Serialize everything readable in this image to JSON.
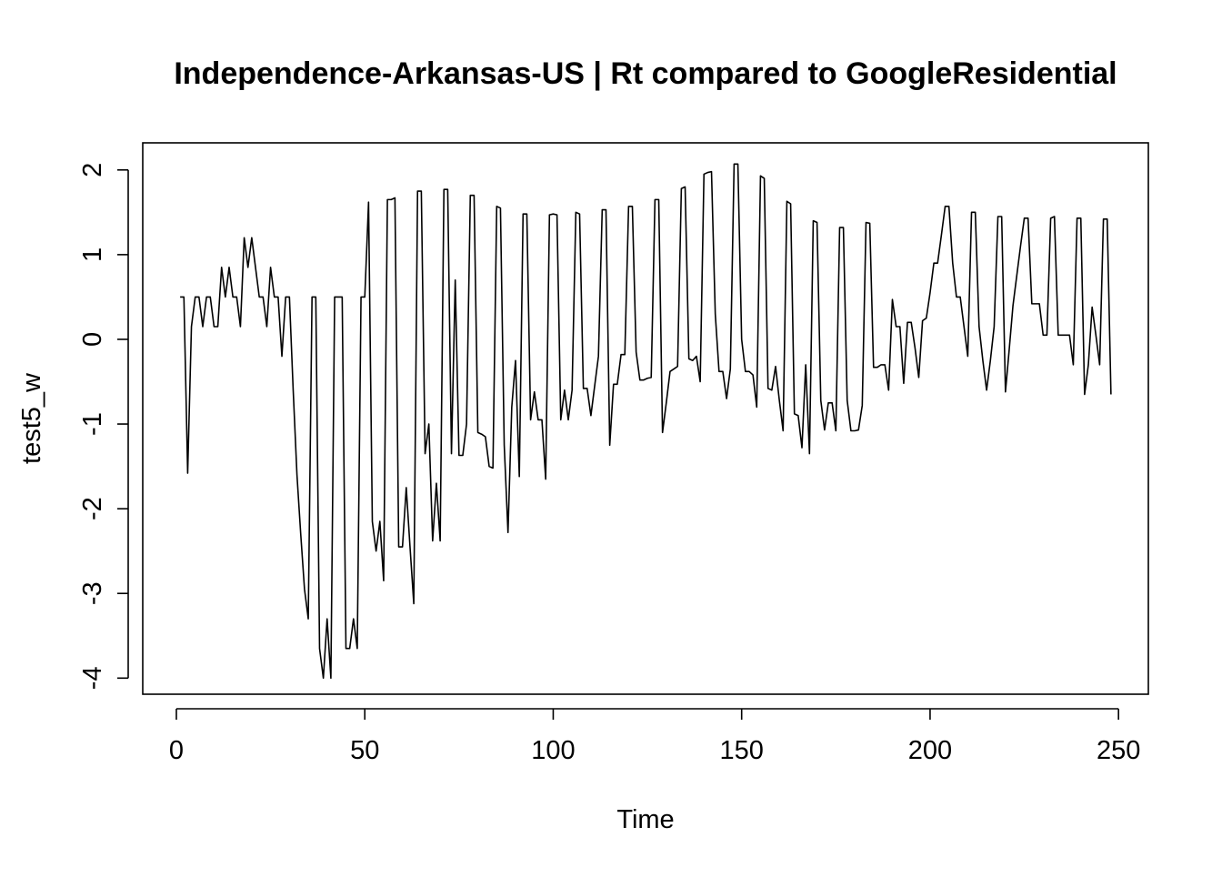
{
  "chart_data": {
    "type": "line",
    "title": "Independence-Arkansas-US | Rt compared to GoogleResidential",
    "xlabel": "Time",
    "ylabel": "test5_w",
    "xlim": [
      -8.92,
      257.92
    ],
    "ylim": [
      -4.19,
      2.32
    ],
    "xticks": [
      0,
      50,
      100,
      150,
      200,
      250
    ],
    "yticks": [
      -4,
      -3,
      -2,
      -1,
      0,
      1,
      2
    ],
    "grid": false,
    "legend": "none",
    "color": "#000000",
    "series": [
      {
        "x": [
          1,
          2,
          3,
          4,
          5,
          6,
          7,
          8,
          9,
          10,
          11,
          12,
          13,
          14,
          15,
          16,
          17,
          18,
          19,
          20,
          21,
          22,
          23,
          24,
          25,
          26,
          27,
          28,
          29,
          30,
          31,
          32,
          33,
          34,
          35,
          36,
          37,
          38,
          39,
          40,
          41,
          42,
          43,
          44,
          45,
          46,
          47,
          48,
          49,
          50,
          51,
          52,
          53,
          54,
          55,
          56,
          57,
          58,
          59,
          60,
          61,
          62,
          63,
          64,
          65,
          66,
          67,
          68,
          69,
          70,
          71,
          72,
          73,
          74,
          75,
          76,
          77,
          78,
          79,
          80,
          81,
          82,
          83,
          84,
          85,
          86,
          87,
          88,
          89,
          90,
          91,
          92,
          93,
          94,
          95,
          96,
          97,
          98,
          99,
          100,
          101,
          102,
          103,
          104,
          105,
          106,
          107,
          108,
          109,
          110,
          111,
          112,
          113,
          114,
          115,
          116,
          117,
          118,
          119,
          120,
          121,
          122,
          123,
          124,
          125,
          126,
          127,
          128,
          129,
          130,
          131,
          132,
          133,
          134,
          135,
          136,
          137,
          138,
          139,
          140,
          141,
          142,
          143,
          144,
          145,
          146,
          147,
          148,
          149,
          150,
          151,
          152,
          153,
          154,
          155,
          156,
          157,
          158,
          159,
          160,
          161,
          162,
          163,
          164,
          165,
          166,
          167,
          168,
          169,
          170,
          171,
          172,
          173,
          174,
          175,
          176,
          177,
          178,
          179,
          180,
          181,
          182,
          183,
          184,
          185,
          186,
          187,
          188,
          189,
          190,
          191,
          192,
          193,
          194,
          195,
          196,
          197,
          198,
          199,
          200,
          201,
          202,
          203,
          204,
          205,
          206,
          207,
          208,
          209,
          210,
          211,
          212,
          213,
          214,
          215,
          216,
          217,
          218,
          219,
          220,
          221,
          222,
          223,
          224,
          225,
          226,
          227,
          228,
          229,
          230,
          231,
          232,
          233,
          234,
          235,
          236,
          237,
          238,
          239,
          240,
          241,
          242,
          243,
          244,
          245,
          246,
          247,
          248
        ],
        "y": [
          0.5,
          0.5,
          -1.58,
          0.15,
          0.5,
          0.5,
          0.15,
          0.5,
          0.5,
          0.15,
          0.15,
          0.85,
          0.5,
          0.85,
          0.5,
          0.5,
          0.15,
          1.2,
          0.85,
          1.2,
          0.85,
          0.5,
          0.5,
          0.15,
          0.85,
          0.5,
          0.5,
          -0.2,
          0.5,
          0.5,
          -0.6,
          -1.6,
          -2.3,
          -2.95,
          -3.3,
          0.5,
          0.5,
          -3.65,
          -4.0,
          -3.3,
          -4.0,
          0.5,
          0.5,
          0.5,
          -3.65,
          -3.65,
          -3.3,
          -3.65,
          0.5,
          0.5,
          1.62,
          -2.15,
          -2.5,
          -2.15,
          -2.85,
          1.65,
          1.65,
          1.67,
          -2.45,
          -2.45,
          -1.75,
          -2.45,
          -3.12,
          1.75,
          1.75,
          -1.35,
          -1.0,
          -2.38,
          -1.7,
          -2.38,
          1.77,
          1.77,
          -1.35,
          0.7,
          -1.37,
          -1.37,
          -1.0,
          1.7,
          1.7,
          -1.1,
          -1.12,
          -1.15,
          -1.5,
          -1.52,
          1.57,
          1.55,
          -1.25,
          -2.28,
          -0.8,
          -0.25,
          -1.62,
          1.48,
          1.48,
          -0.95,
          -0.62,
          -0.95,
          -0.95,
          -1.65,
          1.47,
          1.48,
          1.47,
          -0.95,
          -0.6,
          -0.95,
          -0.6,
          1.5,
          1.48,
          -0.58,
          -0.58,
          -0.9,
          -0.55,
          -0.2,
          1.53,
          1.53,
          -1.25,
          -0.53,
          -0.53,
          -0.18,
          -0.18,
          1.57,
          1.57,
          -0.15,
          -0.48,
          -0.48,
          -0.46,
          -0.45,
          1.65,
          1.65,
          -1.1,
          -0.75,
          -0.38,
          -0.35,
          -0.32,
          1.78,
          1.8,
          -0.23,
          -0.25,
          -0.2,
          -0.5,
          1.95,
          1.97,
          1.98,
          0.3,
          -0.38,
          -0.38,
          -0.7,
          -0.35,
          2.07,
          2.07,
          0.0,
          -0.38,
          -0.38,
          -0.42,
          -0.8,
          1.93,
          1.9,
          -0.58,
          -0.6,
          -0.32,
          -0.72,
          -1.08,
          1.63,
          1.6,
          -0.88,
          -0.9,
          -1.28,
          -0.3,
          -1.35,
          1.4,
          1.38,
          -0.72,
          -1.07,
          -0.75,
          -0.75,
          -1.08,
          1.32,
          1.32,
          -0.72,
          -1.08,
          -1.08,
          -1.07,
          -0.78,
          1.38,
          1.37,
          -0.33,
          -0.33,
          -0.3,
          -0.3,
          -0.6,
          0.47,
          0.15,
          0.15,
          -0.52,
          0.2,
          0.2,
          -0.1,
          -0.45,
          0.22,
          0.25,
          0.55,
          0.9,
          0.9,
          1.23,
          1.57,
          1.57,
          0.9,
          0.5,
          0.5,
          0.15,
          -0.2,
          1.5,
          1.5,
          0.15,
          -0.25,
          -0.6,
          -0.25,
          0.15,
          1.45,
          1.45,
          -0.62,
          -0.12,
          0.4,
          0.75,
          1.1,
          1.43,
          1.43,
          0.42,
          0.42,
          0.42,
          0.05,
          0.05,
          1.43,
          1.45,
          0.05,
          0.05,
          0.05,
          0.05,
          -0.3,
          1.43,
          1.43,
          -0.65,
          -0.3,
          0.38,
          0.05,
          -0.3,
          1.42,
          1.42,
          -0.65
        ]
      }
    ]
  }
}
